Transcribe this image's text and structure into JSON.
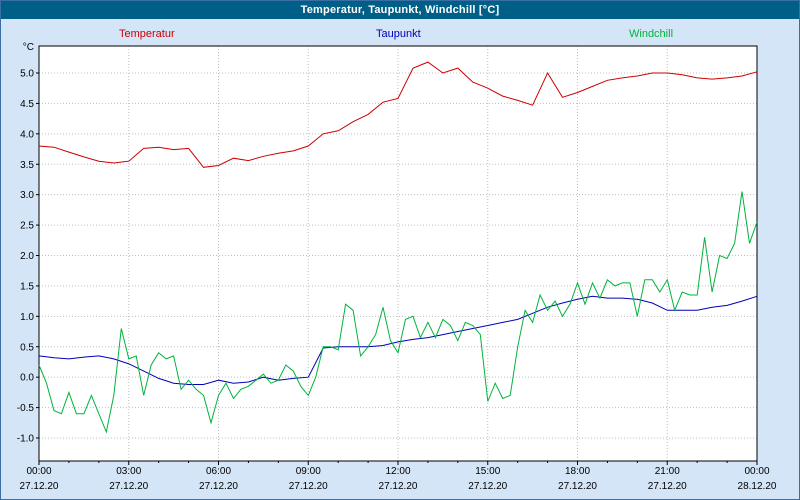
{
  "window": {
    "title": "Temperatur, Taupunkt, Windchill [°C]"
  },
  "colors": {
    "background": "#d3e5f7",
    "titlebar": "#005f87",
    "grid": "#bfbfbf",
    "frame": "#000000",
    "plot_background": "#ffffff"
  },
  "chart_data": {
    "type": "line",
    "title": "Temperatur, Taupunkt, Windchill [°C]",
    "ylabel": "°C",
    "ylim": [
      -1.0,
      5.0
    ],
    "ytick_step": 0.5,
    "x_hours_range": [
      0,
      24
    ],
    "grid": true,
    "legend_position": "top",
    "xticks": [
      {
        "hour": 0,
        "time": "00:00",
        "date": "27.12.20"
      },
      {
        "hour": 3,
        "time": "03:00",
        "date": "27.12.20"
      },
      {
        "hour": 6,
        "time": "06:00",
        "date": "27.12.20"
      },
      {
        "hour": 9,
        "time": "09:00",
        "date": "27.12.20"
      },
      {
        "hour": 12,
        "time": "12:00",
        "date": "27.12.20"
      },
      {
        "hour": 15,
        "time": "15:00",
        "date": "27.12.20"
      },
      {
        "hour": 18,
        "time": "18:00",
        "date": "27.12.20"
      },
      {
        "hour": 21,
        "time": "21:00",
        "date": "27.12.20"
      },
      {
        "hour": 24,
        "time": "00:00",
        "date": "28.12.20"
      }
    ],
    "series": [
      {
        "name": "Temperatur",
        "color": "#cc0000",
        "step_hours": 0.5,
        "values": [
          3.8,
          3.78,
          3.7,
          3.62,
          3.55,
          3.52,
          3.55,
          3.76,
          3.78,
          3.74,
          3.76,
          3.45,
          3.48,
          3.6,
          3.56,
          3.63,
          3.68,
          3.72,
          3.8,
          4.0,
          4.05,
          4.2,
          4.32,
          4.52,
          4.58,
          5.08,
          5.18,
          5.0,
          5.08,
          4.85,
          4.75,
          4.62,
          4.55,
          4.47,
          5.0,
          4.6,
          4.68,
          4.78,
          4.88,
          4.92,
          4.95,
          5.0,
          5.0,
          4.97,
          4.92,
          4.9,
          4.92,
          4.95,
          5.02
        ]
      },
      {
        "name": "Taupunkt",
        "color": "#0000bb",
        "step_hours": 0.5,
        "values": [
          0.35,
          0.32,
          0.3,
          0.33,
          0.35,
          0.3,
          0.22,
          0.1,
          -0.02,
          -0.1,
          -0.12,
          -0.12,
          -0.05,
          -0.1,
          -0.08,
          0.0,
          -0.05,
          -0.02,
          0.0,
          0.48,
          0.5,
          0.5,
          0.5,
          0.52,
          0.58,
          0.62,
          0.65,
          0.7,
          0.75,
          0.8,
          0.85,
          0.9,
          0.95,
          1.05,
          1.15,
          1.22,
          1.28,
          1.33,
          1.3,
          1.3,
          1.28,
          1.22,
          1.1,
          1.1,
          1.1,
          1.15,
          1.18,
          1.25,
          1.33
        ]
      },
      {
        "name": "Windchill",
        "color": "#00b33c",
        "step_hours": 0.25,
        "values": [
          0.2,
          -0.1,
          -0.55,
          -0.6,
          -0.25,
          -0.6,
          -0.6,
          -0.3,
          -0.6,
          -0.9,
          -0.3,
          0.8,
          0.3,
          0.35,
          -0.3,
          0.2,
          0.4,
          0.3,
          0.35,
          -0.2,
          -0.05,
          -0.2,
          -0.3,
          -0.75,
          -0.3,
          -0.1,
          -0.35,
          -0.2,
          -0.15,
          -0.05,
          0.05,
          -0.1,
          -0.05,
          0.2,
          0.1,
          -0.15,
          -0.3,
          0.0,
          0.5,
          0.5,
          0.45,
          1.2,
          1.1,
          0.35,
          0.5,
          0.7,
          1.15,
          0.6,
          0.4,
          0.95,
          1.0,
          0.65,
          0.9,
          0.65,
          0.95,
          0.85,
          0.6,
          0.9,
          0.85,
          0.7,
          -0.4,
          -0.1,
          -0.35,
          -0.3,
          0.5,
          1.1,
          0.9,
          1.35,
          1.1,
          1.25,
          1.0,
          1.2,
          1.55,
          1.2,
          1.55,
          1.3,
          1.6,
          1.5,
          1.55,
          1.55,
          1.0,
          1.6,
          1.6,
          1.4,
          1.6,
          1.1,
          1.4,
          1.35,
          1.35,
          2.3,
          1.4,
          2.0,
          1.95,
          2.2,
          3.05,
          2.2,
          2.55
        ]
      }
    ]
  }
}
